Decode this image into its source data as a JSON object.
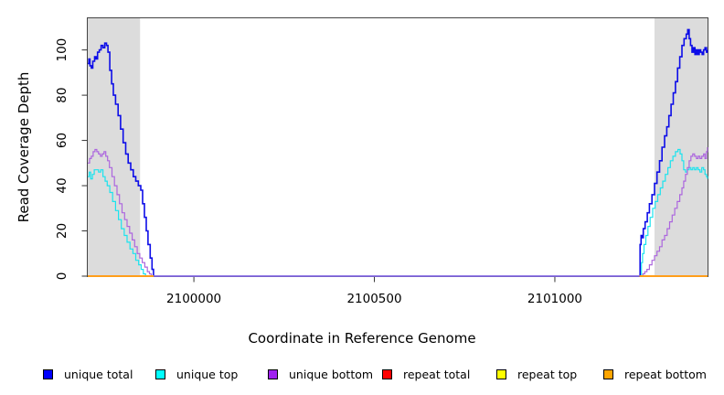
{
  "figure": {
    "xlabel": "Coordinate in Reference Genome",
    "ylabel": "Read Coverage Depth"
  },
  "legend": {
    "position": "bottom",
    "items": [
      {
        "label": "unique total",
        "color": "#0000FF"
      },
      {
        "label": "unique top",
        "color": "#00FFFF"
      },
      {
        "label": "unique bottom",
        "color": "#A020F0"
      },
      {
        "label": "repeat total",
        "color": "#FF0000"
      },
      {
        "label": "repeat top",
        "color": "#FFFF00"
      },
      {
        "label": "repeat bottom",
        "color": "#FFA500"
      }
    ]
  },
  "chart_data": {
    "type": "line",
    "title": "",
    "xlabel": "Coordinate in Reference Genome",
    "ylabel": "Read Coverage Depth",
    "xlim": [
      2099706,
      2101423
    ],
    "ylim": [
      0,
      114
    ],
    "x_ticks": [
      2100000,
      2100500,
      2101000
    ],
    "y_ticks": [
      0,
      20,
      40,
      60,
      80,
      100
    ],
    "grid": false,
    "legend_position": "bottom",
    "background": "#ffffff",
    "shaded_region_color": "#DCDCDC",
    "shaded_regions": [
      {
        "x0": 2099706,
        "x1": 2099851
      },
      {
        "x0": 2101276,
        "x1": 2101423
      }
    ],
    "series": [
      {
        "name": "unique total",
        "color": "#0D0DE8",
        "width": 1.6,
        "points": [
          [
            2099706,
            94
          ],
          [
            2099709,
            96
          ],
          [
            2099712,
            93
          ],
          [
            2099716,
            92
          ],
          [
            2099720,
            95
          ],
          [
            2099725,
            97
          ],
          [
            2099729,
            96
          ],
          [
            2099733,
            99
          ],
          [
            2099738,
            100
          ],
          [
            2099743,
            102
          ],
          [
            2099748,
            101
          ],
          [
            2099753,
            103
          ],
          [
            2099758,
            102
          ],
          [
            2099762,
            99
          ],
          [
            2099767,
            91
          ],
          [
            2099772,
            85
          ],
          [
            2099777,
            80
          ],
          [
            2099783,
            76
          ],
          [
            2099790,
            71
          ],
          [
            2099797,
            65
          ],
          [
            2099804,
            59
          ],
          [
            2099811,
            54
          ],
          [
            2099818,
            50
          ],
          [
            2099825,
            47
          ],
          [
            2099832,
            44
          ],
          [
            2099839,
            42
          ],
          [
            2099846,
            40
          ],
          [
            2099853,
            38
          ],
          [
            2099858,
            32
          ],
          [
            2099863,
            26
          ],
          [
            2099868,
            20
          ],
          [
            2099873,
            14
          ],
          [
            2099879,
            8
          ],
          [
            2099884,
            3
          ],
          [
            2099888,
            0
          ],
          [
            2101235,
            0
          ],
          [
            2101236,
            14
          ],
          [
            2101239,
            18
          ],
          [
            2101242,
            17
          ],
          [
            2101245,
            21
          ],
          [
            2101250,
            24
          ],
          [
            2101256,
            28
          ],
          [
            2101262,
            32
          ],
          [
            2101269,
            36
          ],
          [
            2101276,
            41
          ],
          [
            2101283,
            46
          ],
          [
            2101290,
            51
          ],
          [
            2101297,
            57
          ],
          [
            2101304,
            62
          ],
          [
            2101310,
            66
          ],
          [
            2101316,
            71
          ],
          [
            2101322,
            76
          ],
          [
            2101328,
            81
          ],
          [
            2101334,
            86
          ],
          [
            2101340,
            92
          ],
          [
            2101346,
            97
          ],
          [
            2101352,
            102
          ],
          [
            2101358,
            105
          ],
          [
            2101364,
            107
          ],
          [
            2101368,
            109
          ],
          [
            2101372,
            105
          ],
          [
            2101376,
            102
          ],
          [
            2101380,
            99
          ],
          [
            2101384,
            101
          ],
          [
            2101388,
            98
          ],
          [
            2101392,
            100
          ],
          [
            2101396,
            98
          ],
          [
            2101400,
            100
          ],
          [
            2101404,
            99
          ],
          [
            2101408,
            98
          ],
          [
            2101412,
            100
          ],
          [
            2101416,
            101
          ],
          [
            2101420,
            99
          ],
          [
            2101423,
            100
          ]
        ]
      },
      {
        "name": "unique top",
        "color": "#1BE3EE",
        "width": 1.2,
        "points": [
          [
            2099706,
            44
          ],
          [
            2099710,
            46
          ],
          [
            2099714,
            43
          ],
          [
            2099719,
            45
          ],
          [
            2099724,
            47
          ],
          [
            2099730,
            47
          ],
          [
            2099736,
            46
          ],
          [
            2099742,
            47
          ],
          [
            2099748,
            44
          ],
          [
            2099754,
            42
          ],
          [
            2099760,
            40
          ],
          [
            2099767,
            37
          ],
          [
            2099775,
            33
          ],
          [
            2099783,
            29
          ],
          [
            2099791,
            25
          ],
          [
            2099799,
            21
          ],
          [
            2099807,
            18
          ],
          [
            2099815,
            15
          ],
          [
            2099823,
            12
          ],
          [
            2099831,
            10
          ],
          [
            2099839,
            7
          ],
          [
            2099847,
            5
          ],
          [
            2099854,
            3
          ],
          [
            2099860,
            1
          ],
          [
            2099866,
            0
          ],
          [
            2101238,
            0
          ],
          [
            2101240,
            6
          ],
          [
            2101243,
            10
          ],
          [
            2101247,
            14
          ],
          [
            2101252,
            18
          ],
          [
            2101258,
            22
          ],
          [
            2101264,
            26
          ],
          [
            2101271,
            30
          ],
          [
            2101278,
            33
          ],
          [
            2101285,
            36
          ],
          [
            2101292,
            39
          ],
          [
            2101299,
            42
          ],
          [
            2101306,
            45
          ],
          [
            2101313,
            48
          ],
          [
            2101320,
            51
          ],
          [
            2101327,
            53
          ],
          [
            2101334,
            55
          ],
          [
            2101341,
            56
          ],
          [
            2101347,
            54
          ],
          [
            2101352,
            51
          ],
          [
            2101357,
            47
          ],
          [
            2101362,
            46
          ],
          [
            2101367,
            47
          ],
          [
            2101372,
            48
          ],
          [
            2101377,
            47
          ],
          [
            2101382,
            48
          ],
          [
            2101387,
            47
          ],
          [
            2101392,
            48
          ],
          [
            2101397,
            47
          ],
          [
            2101402,
            46
          ],
          [
            2101407,
            48
          ],
          [
            2101412,
            47
          ],
          [
            2101416,
            45
          ],
          [
            2101420,
            44
          ],
          [
            2101423,
            43
          ]
        ]
      },
      {
        "name": "unique bottom",
        "color": "#AC66DE",
        "width": 1.2,
        "points": [
          [
            2099706,
            50
          ],
          [
            2099711,
            52
          ],
          [
            2099716,
            53
          ],
          [
            2099721,
            55
          ],
          [
            2099726,
            56
          ],
          [
            2099731,
            55
          ],
          [
            2099736,
            54
          ],
          [
            2099741,
            53
          ],
          [
            2099746,
            54
          ],
          [
            2099751,
            55
          ],
          [
            2099756,
            53
          ],
          [
            2099761,
            51
          ],
          [
            2099766,
            48
          ],
          [
            2099773,
            44
          ],
          [
            2099780,
            40
          ],
          [
            2099787,
            36
          ],
          [
            2099794,
            32
          ],
          [
            2099801,
            28
          ],
          [
            2099808,
            25
          ],
          [
            2099815,
            22
          ],
          [
            2099822,
            19
          ],
          [
            2099829,
            16
          ],
          [
            2099836,
            13
          ],
          [
            2099843,
            10
          ],
          [
            2099850,
            8
          ],
          [
            2099857,
            6
          ],
          [
            2099864,
            4
          ],
          [
            2099871,
            2
          ],
          [
            2099877,
            1
          ],
          [
            2099882,
            0
          ],
          [
            2101240,
            0
          ],
          [
            2101244,
            1
          ],
          [
            2101249,
            2
          ],
          [
            2101255,
            3
          ],
          [
            2101262,
            5
          ],
          [
            2101269,
            7
          ],
          [
            2101276,
            9
          ],
          [
            2101283,
            11
          ],
          [
            2101290,
            13
          ],
          [
            2101297,
            16
          ],
          [
            2101304,
            18
          ],
          [
            2101311,
            21
          ],
          [
            2101318,
            24
          ],
          [
            2101325,
            27
          ],
          [
            2101332,
            30
          ],
          [
            2101339,
            33
          ],
          [
            2101346,
            36
          ],
          [
            2101352,
            39
          ],
          [
            2101357,
            42
          ],
          [
            2101362,
            45
          ],
          [
            2101367,
            48
          ],
          [
            2101372,
            51
          ],
          [
            2101377,
            53
          ],
          [
            2101382,
            54
          ],
          [
            2101387,
            53
          ],
          [
            2101392,
            52
          ],
          [
            2101397,
            53
          ],
          [
            2101402,
            52
          ],
          [
            2101407,
            53
          ],
          [
            2101412,
            54
          ],
          [
            2101416,
            52
          ],
          [
            2101420,
            55
          ],
          [
            2101423,
            57
          ]
        ]
      },
      {
        "name": "repeat total",
        "color": "#FF0000",
        "width": 1.2,
        "points": [
          [
            2099706,
            0
          ],
          [
            2099888,
            0
          ],
          null,
          [
            2101235,
            0
          ],
          [
            2101423,
            0
          ]
        ]
      },
      {
        "name": "repeat top",
        "color": "#FFFF00",
        "width": 1.2,
        "points": [
          [
            2099706,
            0
          ],
          [
            2099888,
            0
          ],
          null,
          [
            2101235,
            0
          ],
          [
            2101423,
            0
          ]
        ]
      },
      {
        "name": "repeat bottom",
        "color": "#FF9E1B",
        "width": 2.0,
        "points": [
          [
            2099706,
            0
          ],
          [
            2099888,
            0
          ],
          null,
          [
            2101235,
            0
          ],
          [
            2101423,
            0
          ]
        ]
      }
    ]
  }
}
